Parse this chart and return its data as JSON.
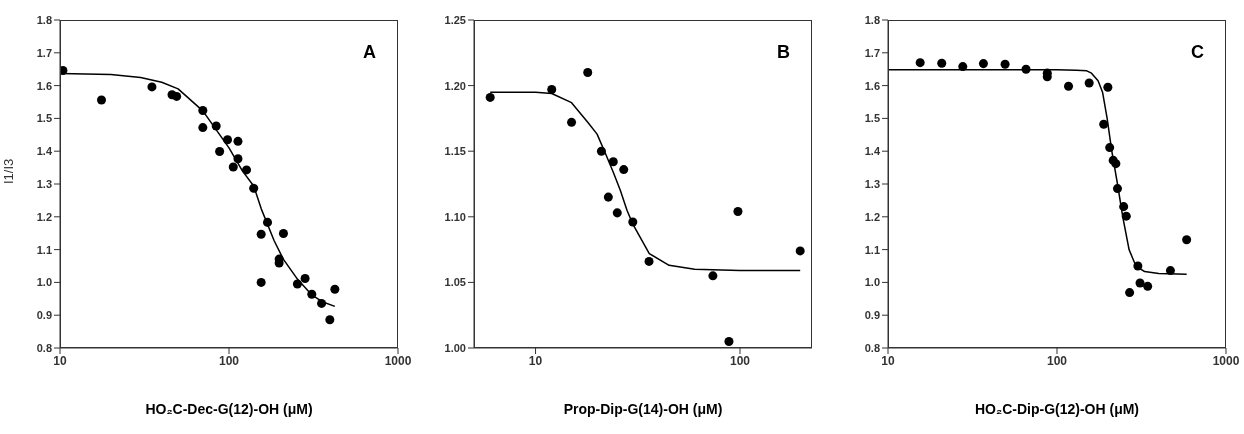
{
  "chart_data": [
    {
      "type": "scatter",
      "xlabel": "HO₂C-Dec-G(12)-OH (μM)",
      "ylabel": "I1/I3",
      "annotations": [
        "A"
      ],
      "log": "x",
      "xlim": [
        10,
        1000
      ],
      "xticks": [
        10,
        100,
        1000
      ],
      "ylim": [
        0.8,
        1.8
      ],
      "yticks": [
        0.8,
        0.9,
        {
          "value": 1,
          "label": "1.0"
        },
        1.1,
        1.2,
        1.3,
        1.4,
        1.5,
        1.6,
        1.7,
        1.8
      ],
      "series": [
        {
          "type": "scatter",
          "marker": "circle",
          "color": "#000000",
          "x": [
            10.4,
            17.6,
            35,
            46,
            49,
            70,
            70,
            84,
            88,
            98,
            106,
            113,
            113,
            127,
            140,
            155,
            169,
            155,
            210,
            198,
            198,
            254,
            282,
            309,
            353,
            395,
            423
          ],
          "values": [
            1.646,
            1.556,
            1.596,
            1.572,
            1.567,
            1.524,
            1.472,
            1.477,
            1.399,
            1.435,
            1.352,
            1.43,
            1.377,
            1.343,
            1.287,
            1.147,
            1.183,
            1.0,
            1.149,
            1.059,
            1.071,
            0.995,
            1.012,
            0.964,
            0.936,
            0.886,
            0.979
          ]
        },
        {
          "type": "line",
          "color": "#000000",
          "line_style": "solid",
          "x": [
            10,
            20,
            30,
            40,
            50,
            70,
            100,
            120,
            140,
            155,
            185,
            210,
            254,
            310,
            360,
            423
          ],
          "values": [
            1.637,
            1.634,
            1.625,
            1.61,
            1.59,
            1.523,
            1.41,
            1.34,
            1.294,
            1.225,
            1.127,
            1.07,
            1.01,
            0.961,
            0.94,
            0.927
          ]
        }
      ]
    },
    {
      "type": "scatter",
      "xlabel": "Prop-Dip-G(14)-OH (μM)",
      "annotations": [
        "B"
      ],
      "log": "x",
      "xlim": [
        5,
        225
      ],
      "xticks": [
        10,
        100
      ],
      "ylim": [
        1.0,
        1.25
      ],
      "yticks": [
        {
          "value": 1,
          "label": "1.00"
        },
        1.05,
        {
          "value": 1.1,
          "label": "1.10"
        },
        1.15,
        {
          "value": 1.2,
          "label": "1.20"
        },
        1.25
      ],
      "series": [
        {
          "type": "scatter",
          "marker": "circle",
          "color": "#000000",
          "x": [
            6.0,
            12.0,
            18.0,
            15.0,
            21.0,
            22.7,
            24.0,
            25.1,
            27.0,
            29.9,
            35.9,
            73.7,
            88.3,
            97.7,
            197
          ],
          "values": [
            1.191,
            1.197,
            1.21,
            1.172,
            1.15,
            1.115,
            1.142,
            1.103,
            1.136,
            1.096,
            1.066,
            1.055,
            1.005,
            1.104,
            1.074
          ]
        },
        {
          "type": "line",
          "color": "#000000",
          "line_style": "solid",
          "x": [
            6,
            10,
            12,
            15,
            18,
            20,
            22,
            24,
            26,
            28,
            30,
            36,
            45,
            60,
            100,
            197
          ],
          "values": [
            1.195,
            1.195,
            1.194,
            1.187,
            1.172,
            1.163,
            1.148,
            1.134,
            1.12,
            1.105,
            1.094,
            1.072,
            1.063,
            1.06,
            1.059,
            1.059
          ]
        }
      ]
    },
    {
      "type": "scatter",
      "xlabel": "HO₂C-Dip-G(12)-OH (μM)",
      "annotations": [
        "C"
      ],
      "log": "x",
      "xlim": [
        10,
        1000
      ],
      "xticks": [
        10,
        100,
        1000
      ],
      "ylim": [
        0.8,
        1.8
      ],
      "yticks": [
        0.8,
        0.9,
        {
          "value": 1,
          "label": "1.0"
        },
        1.1,
        1.2,
        1.3,
        1.4,
        1.5,
        1.6,
        1.7,
        1.8
      ],
      "series": [
        {
          "type": "scatter",
          "marker": "circle",
          "color": "#000000",
          "x": [
            15.5,
            20.8,
            27.7,
            36.7,
            49.3,
            65.6,
            87.6,
            87.6,
            117,
            155,
            200,
            189,
            205,
            215,
            223,
            228,
            248,
            257,
            269,
            301,
            310,
            344,
            469,
            585
          ],
          "values": [
            1.67,
            1.668,
            1.658,
            1.667,
            1.665,
            1.65,
            1.638,
            1.627,
            1.598,
            1.608,
            1.595,
            1.482,
            1.411,
            1.372,
            1.362,
            1.286,
            1.231,
            1.202,
            0.969,
            1.05,
            0.998,
            0.988,
            1.036,
            1.13
          ]
        },
        {
          "type": "line",
          "color": "#000000",
          "line_style": "solid",
          "x": [
            10,
            50,
            100,
            130,
            150,
            160,
            175,
            186,
            198,
            211,
            228,
            245,
            267,
            293,
            330,
            400,
            585
          ],
          "values": [
            1.648,
            1.648,
            1.648,
            1.647,
            1.645,
            1.638,
            1.615,
            1.58,
            1.5,
            1.4,
            1.3,
            1.2,
            1.1,
            1.05,
            1.033,
            1.027,
            1.025
          ]
        }
      ]
    }
  ]
}
